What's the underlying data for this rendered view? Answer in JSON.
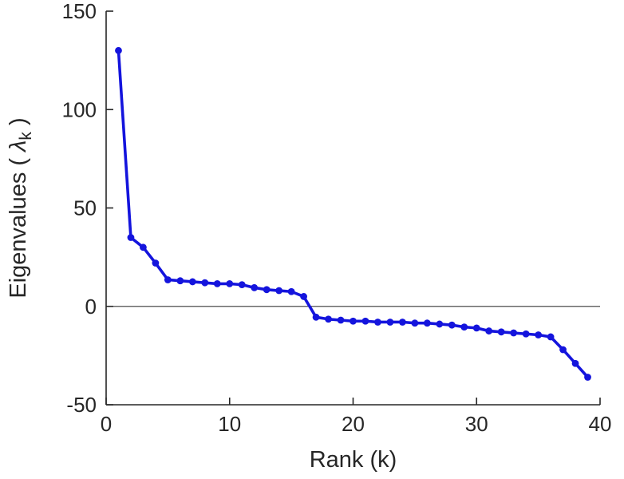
{
  "chart_data": {
    "type": "line",
    "title": "",
    "xlabel": "Rank (k)",
    "ylabel": "Eigenvalues ( λ_k )",
    "ylabel_parts": {
      "prefix": "Eigenvalues ( ",
      "symbol": "λ",
      "subscript": "k",
      "suffix": " )"
    },
    "xlim": [
      0,
      40
    ],
    "ylim": [
      -50,
      150
    ],
    "xticks": [
      0,
      10,
      20,
      30,
      40
    ],
    "xtick_labels": [
      "0",
      "10",
      "20",
      "30",
      "40"
    ],
    "yticks": [
      -50,
      0,
      50,
      100,
      150
    ],
    "ytick_labels": [
      "-50",
      "0",
      "50",
      "100",
      "150"
    ],
    "grid": false,
    "legend": null,
    "zero_line": true,
    "series": [
      {
        "name": "eigenvalues",
        "marker": "circle",
        "x": [
          1,
          2,
          3,
          4,
          5,
          6,
          7,
          8,
          9,
          10,
          11,
          12,
          13,
          14,
          15,
          16,
          17,
          18,
          19,
          20,
          21,
          22,
          23,
          24,
          25,
          26,
          27,
          28,
          29,
          30,
          31,
          32,
          33,
          34,
          35,
          36,
          37,
          38,
          39
        ],
        "y": [
          130,
          35,
          30,
          22,
          13.5,
          13,
          12.5,
          12,
          11.5,
          11.5,
          11,
          9.5,
          8.5,
          8,
          7.5,
          5,
          -5.5,
          -6.5,
          -7,
          -7.5,
          -7.5,
          -8,
          -8,
          -8,
          -8.5,
          -8.5,
          -9,
          -9.5,
          -10.5,
          -11,
          -12.5,
          -13,
          -13.5,
          -14,
          -14.5,
          -15.5,
          -22,
          -29,
          -36
        ]
      }
    ],
    "colors": {
      "line": "#1414dd",
      "marker": "#1414dd",
      "axis": "#262626",
      "tick_text": "#262626",
      "zero_line": "#4d4d4d",
      "background": "#ffffff"
    }
  }
}
